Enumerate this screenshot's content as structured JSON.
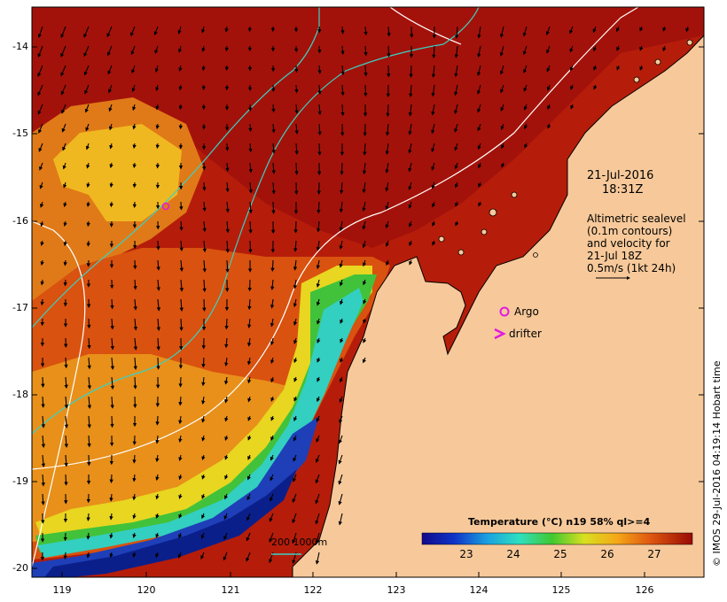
{
  "map": {
    "date_line1": "21-Jul-2016",
    "date_line2": "18:31Z",
    "info_lines": [
      "Altimetric sealevel",
      "(0.1m contours)",
      "and velocity for",
      "21-Jul 18Z",
      "0.5m/s (1kt 24h)"
    ],
    "legend_argo": "Argo",
    "legend_drifter": "drifter",
    "depth_legend": "200  1000m",
    "colorbar_title": "Temperature (°C) n19 58% ql>=4",
    "colorbar_ticks": [
      "23",
      "24",
      "25",
      "26",
      "27"
    ],
    "credit": "© IMOS 29-Jul-2016 04:19:14 Hobart time",
    "x_axis_ticks": [
      "119",
      "120",
      "121",
      "122",
      "123",
      "124",
      "125",
      "126"
    ],
    "y_axis_ticks": [
      "-14",
      "-15",
      "-16",
      "-17",
      "-18",
      "-19",
      "-20"
    ]
  },
  "colors": {
    "land": "#f7c99a",
    "warm_ocean": "#b51d0a",
    "hot_ocean": "#9a0d05",
    "mid_ocean": "#d9520f",
    "orange": "#f0a020",
    "yellow": "#f7e21a",
    "green": "#49c23a",
    "cyan": "#35d6c8",
    "blue": "#1e3fb8",
    "deep_blue": "#0b1f8a",
    "isobath": "#3bd1c4",
    "contour": "#ffffff",
    "argo": "#e21adf"
  }
}
